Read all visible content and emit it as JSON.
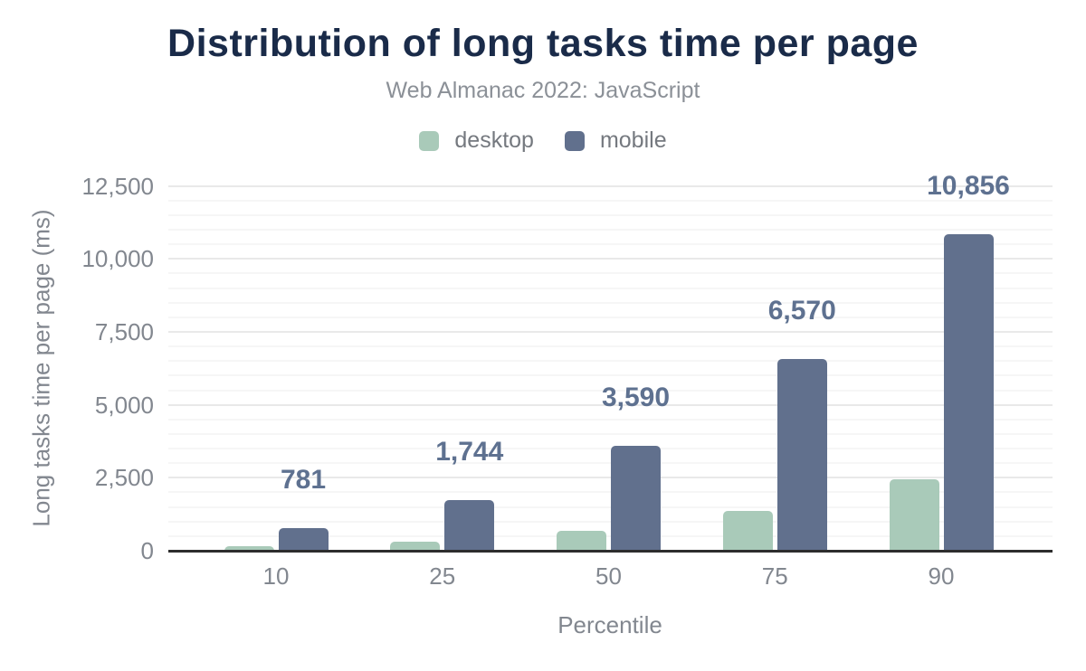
{
  "chart_data": {
    "type": "bar",
    "title": "Distribution of long tasks time per page",
    "subtitle": "Web Almanac 2022: JavaScript",
    "xlabel": "Percentile",
    "ylabel": "Long tasks time per page (ms)",
    "categories": [
      "10",
      "25",
      "50",
      "75",
      "90"
    ],
    "series": [
      {
        "name": "desktop",
        "color": "#a9cab9",
        "values": [
          150,
          295,
          680,
          1350,
          2460
        ],
        "data_labels_shown": false
      },
      {
        "name": "mobile",
        "color": "#61708d",
        "values": [
          781,
          1744,
          3590,
          6570,
          10856
        ],
        "data_labels_shown": true,
        "data_labels": [
          "781",
          "1,744",
          "3,590",
          "6,570",
          "10,856"
        ]
      }
    ],
    "ylim": [
      0,
      12500
    ],
    "ytick_interval": 2500,
    "yticks": [
      "0",
      "2,500",
      "5,000",
      "7,500",
      "10,000",
      "12,500"
    ],
    "minor_gridline_interval": 500,
    "grid": true,
    "legend_position": "top",
    "colors": {
      "title_text": "#1a2b49",
      "subtitle_text": "#8b9097",
      "axis_text": "#82878f",
      "data_label_text": "#5e7190",
      "axis_line": "#2d2d2d",
      "gridline_major": "#e9e9e9",
      "gridline_minor": "#f6f6f6",
      "background": "#ffffff"
    }
  }
}
